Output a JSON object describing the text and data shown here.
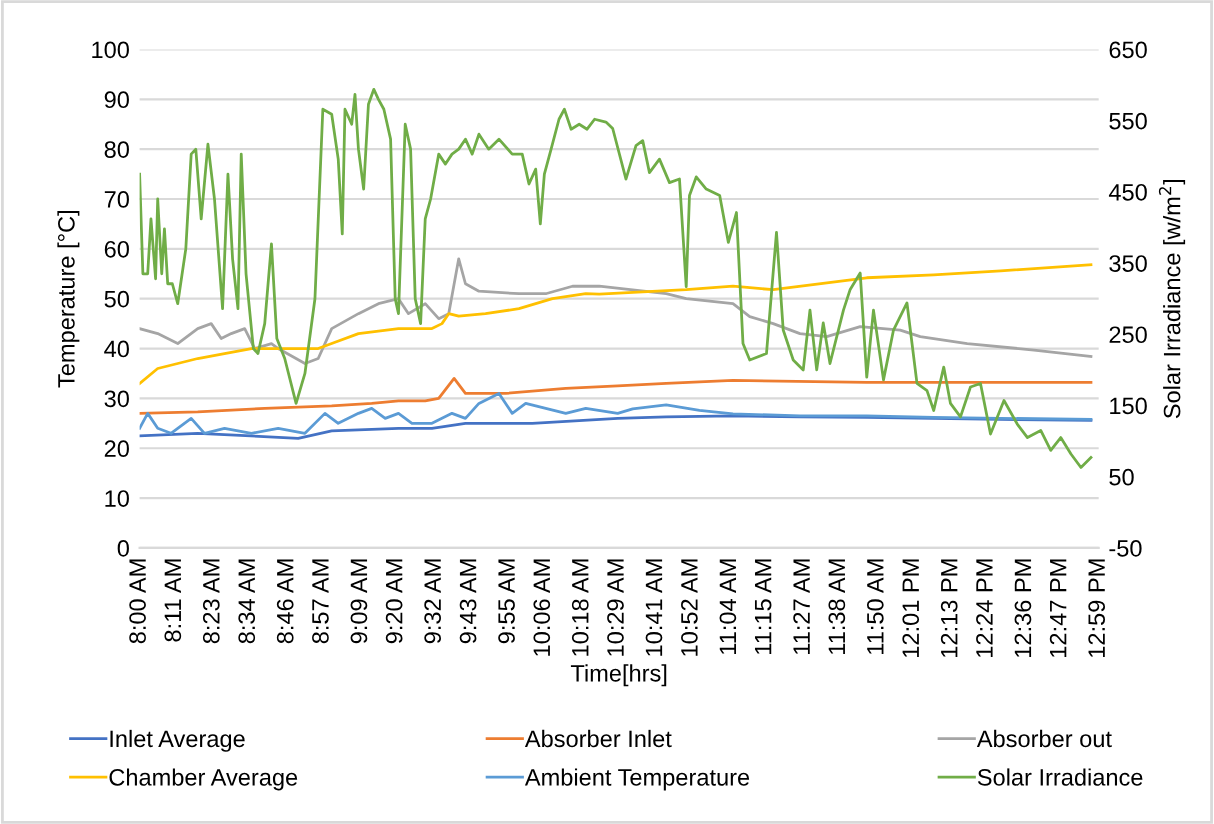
{
  "chart_data": {
    "type": "line",
    "xlabel": "Time[hrs]",
    "ylabel": "Temperature [°C]",
    "y2label": "Solar Irradiance [w/m$^{2}$]",
    "xlim": [
      8,
      12.983
    ],
    "xticks": [
      {
        "value": 8,
        "label": "8:00 AM"
      },
      {
        "value": 8.183,
        "label": "8:11 AM"
      },
      {
        "value": 8.383,
        "label": "8:23 AM"
      },
      {
        "value": 8.567,
        "label": "8:34 AM"
      },
      {
        "value": 8.767,
        "label": "8:46 AM"
      },
      {
        "value": 8.95,
        "label": "8:57 AM"
      },
      {
        "value": 9.15,
        "label": "9:09 AM"
      },
      {
        "value": 9.333,
        "label": "9:20 AM"
      },
      {
        "value": 9.533,
        "label": "9:32 AM"
      },
      {
        "value": 9.717,
        "label": "9:43 AM"
      },
      {
        "value": 9.917,
        "label": "9:55 AM"
      },
      {
        "value": 10.1,
        "label": "10:06 AM"
      },
      {
        "value": 10.3,
        "label": "10:18 AM"
      },
      {
        "value": 10.483,
        "label": "10:29 AM"
      },
      {
        "value": 10.683,
        "label": "10:41 AM"
      },
      {
        "value": 10.867,
        "label": "10:52 AM"
      },
      {
        "value": 11.067,
        "label": "11:04 AM"
      },
      {
        "value": 11.25,
        "label": "11:15 AM"
      },
      {
        "value": 11.45,
        "label": "11:27 AM"
      },
      {
        "value": 11.633,
        "label": "11:38 AM"
      },
      {
        "value": 11.833,
        "label": "11:50 AM"
      },
      {
        "value": 12.017,
        "label": "12:01 PM"
      },
      {
        "value": 12.217,
        "label": "12:13 PM"
      },
      {
        "value": 12.4,
        "label": "12:24 PM"
      },
      {
        "value": 12.6,
        "label": "12:36 PM"
      },
      {
        "value": 12.783,
        "label": "12:47 PM"
      },
      {
        "value": 12.983,
        "label": "12:59 PM"
      }
    ],
    "ylim": [
      0,
      100
    ],
    "yticks": [
      0,
      10,
      20,
      30,
      40,
      50,
      60,
      70,
      80,
      90,
      100
    ],
    "y2lim": [
      -50,
      650
    ],
    "y2ticks": [
      -50,
      50,
      150,
      250,
      350,
      450,
      550,
      650
    ],
    "grid": "y",
    "legend": "bottom",
    "marker": "none",
    "line_style": "solid",
    "series": [
      {
        "name": "Inlet Average",
        "color": "#4472c4",
        "x": [
          8.0,
          8.302,
          8.824,
          8.998,
          9.345,
          9.519,
          9.693,
          10.04,
          10.484,
          10.736,
          11.083,
          11.431,
          11.778,
          12.126,
          12.474,
          12.943
        ],
        "values": [
          22.5,
          23,
          22,
          23.5,
          24,
          24,
          25,
          25,
          26,
          26.3,
          26.5,
          26.3,
          26.2,
          26,
          25.8,
          25.6
        ]
      },
      {
        "name": "Absorber Inlet",
        "color": "#ed7d31",
        "x": [
          8.0,
          8.302,
          8.65,
          8.998,
          9.206,
          9.345,
          9.484,
          9.554,
          9.634,
          9.693,
          9.901,
          10.214,
          10.484,
          10.736,
          11.083,
          11.778,
          12.943
        ],
        "values": [
          27,
          27.3,
          28,
          28.5,
          29,
          29.5,
          29.5,
          30,
          34,
          31,
          31,
          32,
          32.5,
          33,
          33.6,
          33.2,
          33.2
        ]
      },
      {
        "name": "Absorber out",
        "color": "#a5a5a5",
        "x": [
          8.0,
          8.094,
          8.198,
          8.302,
          8.372,
          8.424,
          8.476,
          8.546,
          8.598,
          8.685,
          8.72,
          8.859,
          8.928,
          8.998,
          9.137,
          9.241,
          9.345,
          9.397,
          9.484,
          9.554,
          9.606,
          9.658,
          9.693,
          9.763,
          9.971,
          10.11,
          10.249,
          10.388,
          10.736,
          10.84,
          11.083,
          11.17,
          11.292,
          11.431,
          11.57,
          11.744,
          11.952,
          12.056,
          12.3,
          12.647,
          12.943
        ],
        "values": [
          44,
          43,
          41,
          44,
          45,
          42,
          43,
          44,
          40,
          41,
          40,
          37,
          38,
          44,
          47,
          49,
          50,
          47,
          49,
          46,
          47,
          58,
          53,
          51.5,
          51,
          51,
          52.5,
          52.5,
          51,
          50,
          49,
          46.4,
          45,
          43,
          42.4,
          44.4,
          43.7,
          42.4,
          41,
          39.7,
          38.4
        ]
      },
      {
        "name": "Chamber Average",
        "color": "#ffc000",
        "x": [
          8.0,
          8.094,
          8.198,
          8.302,
          8.441,
          8.581,
          8.72,
          8.928,
          8.998,
          9.137,
          9.345,
          9.519,
          9.571,
          9.606,
          9.658,
          9.797,
          9.971,
          10.145,
          10.318,
          10.388,
          10.84,
          11.083,
          11.292,
          11.778,
          12.126,
          12.474,
          12.943
        ],
        "values": [
          33,
          36,
          37,
          38,
          39,
          40,
          40,
          40,
          41,
          43,
          44,
          44,
          45,
          47,
          46.5,
          47,
          48,
          50,
          51,
          50.9,
          51.8,
          52.5,
          51.8,
          54.2,
          54.8,
          55.6,
          56.8
        ]
      },
      {
        "name": "Ambient Temperature",
        "color": "#5b9bd5",
        "x": [
          8.0,
          8.042,
          8.094,
          8.163,
          8.268,
          8.337,
          8.441,
          8.581,
          8.72,
          8.859,
          8.963,
          9.032,
          9.137,
          9.206,
          9.276,
          9.345,
          9.415,
          9.519,
          9.623,
          9.693,
          9.763,
          9.867,
          9.936,
          10.006,
          10.11,
          10.214,
          10.318,
          10.484,
          10.562,
          10.736,
          10.909,
          11.083,
          11.431,
          11.778,
          12.126,
          12.474,
          12.943
        ],
        "values": [
          24,
          27,
          24,
          23,
          26,
          23,
          24,
          23,
          24,
          23,
          27,
          25,
          27,
          28,
          26,
          27,
          25,
          25,
          27,
          26,
          29,
          31,
          27,
          29,
          28,
          27,
          28,
          27,
          27.9,
          28.7,
          27.6,
          26.9,
          26.5,
          26.5,
          26.2,
          26,
          25.8
        ]
      },
      {
        "name": "Solar Irradiance",
        "color": "#70ad47",
        "axis": "y2",
        "x": [
          8.0,
          8.017,
          8.042,
          8.059,
          8.083,
          8.094,
          8.115,
          8.129,
          8.146,
          8.17,
          8.198,
          8.24,
          8.268,
          8.292,
          8.32,
          8.355,
          8.389,
          8.431,
          8.459,
          8.483,
          8.511,
          8.528,
          8.553,
          8.591,
          8.615,
          8.65,
          8.685,
          8.713,
          8.754,
          8.813,
          8.859,
          8.911,
          8.952,
          8.998,
          9.032,
          9.053,
          9.067,
          9.102,
          9.119,
          9.137,
          9.164,
          9.189,
          9.217,
          9.241,
          9.269,
          9.304,
          9.328,
          9.345,
          9.38,
          9.408,
          9.432,
          9.46,
          9.484,
          9.512,
          9.554,
          9.589,
          9.623,
          9.658,
          9.693,
          9.728,
          9.763,
          9.814,
          9.867,
          9.936,
          9.988,
          10.023,
          10.058,
          10.082,
          10.103,
          10.138,
          10.179,
          10.207,
          10.242,
          10.284,
          10.325,
          10.364,
          10.423,
          10.458,
          10.527,
          10.579,
          10.614,
          10.649,
          10.701,
          10.753,
          10.805,
          10.84,
          10.857,
          10.892,
          10.944,
          11.014,
          11.059,
          11.101,
          11.135,
          11.17,
          11.257,
          11.309,
          11.344,
          11.396,
          11.448,
          11.483,
          11.518,
          11.552,
          11.587,
          11.657,
          11.692,
          11.744,
          11.778,
          11.813,
          11.865,
          11.917,
          11.987,
          12.039,
          12.091,
          12.126,
          12.178,
          12.213,
          12.265,
          12.317,
          12.369,
          12.421,
          12.491,
          12.56,
          12.613,
          12.682,
          12.734,
          12.786,
          12.839,
          12.891,
          12.943
        ],
        "values": [
          475,
          335,
          335,
          412,
          328,
          440,
          335,
          398,
          321,
          321,
          293,
          370,
          503,
          510,
          412,
          517,
          440,
          286,
          475,
          356,
          286,
          503,
          335,
          230,
          223,
          265,
          377,
          244,
          216,
          153,
          195,
          300,
          566,
          559,
          496,
          391,
          566,
          545,
          587,
          510,
          454,
          573,
          594,
          580,
          566,
          524,
          300,
          279,
          545,
          510,
          300,
          265,
          412,
          440,
          503,
          489,
          503,
          510,
          524,
          503,
          531,
          510,
          524,
          503,
          503,
          461,
          482,
          405,
          475,
          510,
          552,
          566,
          538,
          545,
          538,
          552,
          548,
          539,
          468,
          515,
          522,
          477,
          496,
          463,
          468,
          317,
          445,
          471,
          454,
          445,
          379,
          421,
          237,
          214,
          223,
          393,
          256,
          214,
          200,
          284,
          200,
          266,
          209,
          284,
          313,
          336,
          190,
          284,
          186,
          256,
          294,
          181,
          171,
          143,
          204,
          153,
          134,
          176,
          181,
          110,
          157,
          124,
          105,
          115,
          87,
          105,
          82,
          63,
          77
        ]
      }
    ]
  }
}
